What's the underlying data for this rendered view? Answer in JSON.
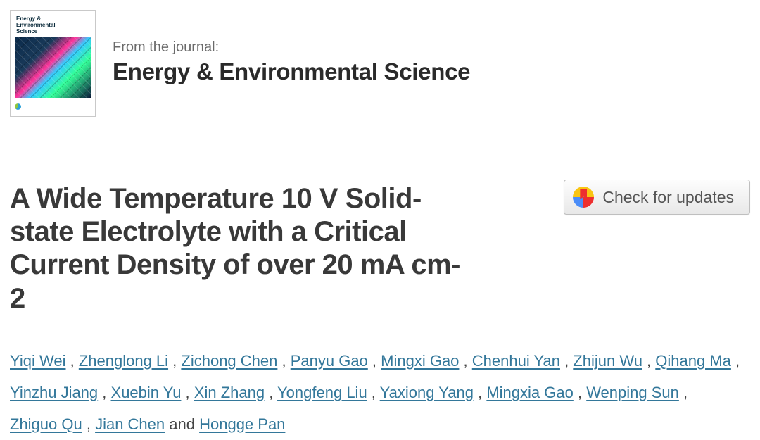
{
  "journal": {
    "from_label": "From the journal:",
    "name": "Energy & Environmental Science",
    "cover_title_line1": "Energy &",
    "cover_title_line2": "Environmental",
    "cover_title_line3": "Science"
  },
  "article": {
    "title": "A Wide Temperature 10 V Solid-state Electrolyte with a Critical Current Density of over 20 mA cm-2"
  },
  "updates_button": {
    "label": "Check for updates"
  },
  "authors": {
    "list": [
      "Yiqi Wei",
      "Zhenglong Li",
      "Zichong Chen",
      "Panyu Gao",
      "Mingxi Gao",
      "Chenhui Yan",
      "Zhijun Wu",
      "Qihang Ma",
      "Yinzhu Jiang",
      "Xuebin Yu",
      "Xin Zhang",
      "Yongfeng Liu",
      "Yaxiong Yang",
      "Mingxia Gao",
      "Wenping Sun",
      "Zhiguo Qu",
      "Jian Chen",
      "Hongge Pan"
    ],
    "and_word": "and"
  },
  "colors": {
    "text_main": "#333333",
    "title": "#393939",
    "link": "#33779a",
    "muted": "#6a6a6a",
    "border": "#d8d8d8",
    "button_text": "#555555"
  }
}
